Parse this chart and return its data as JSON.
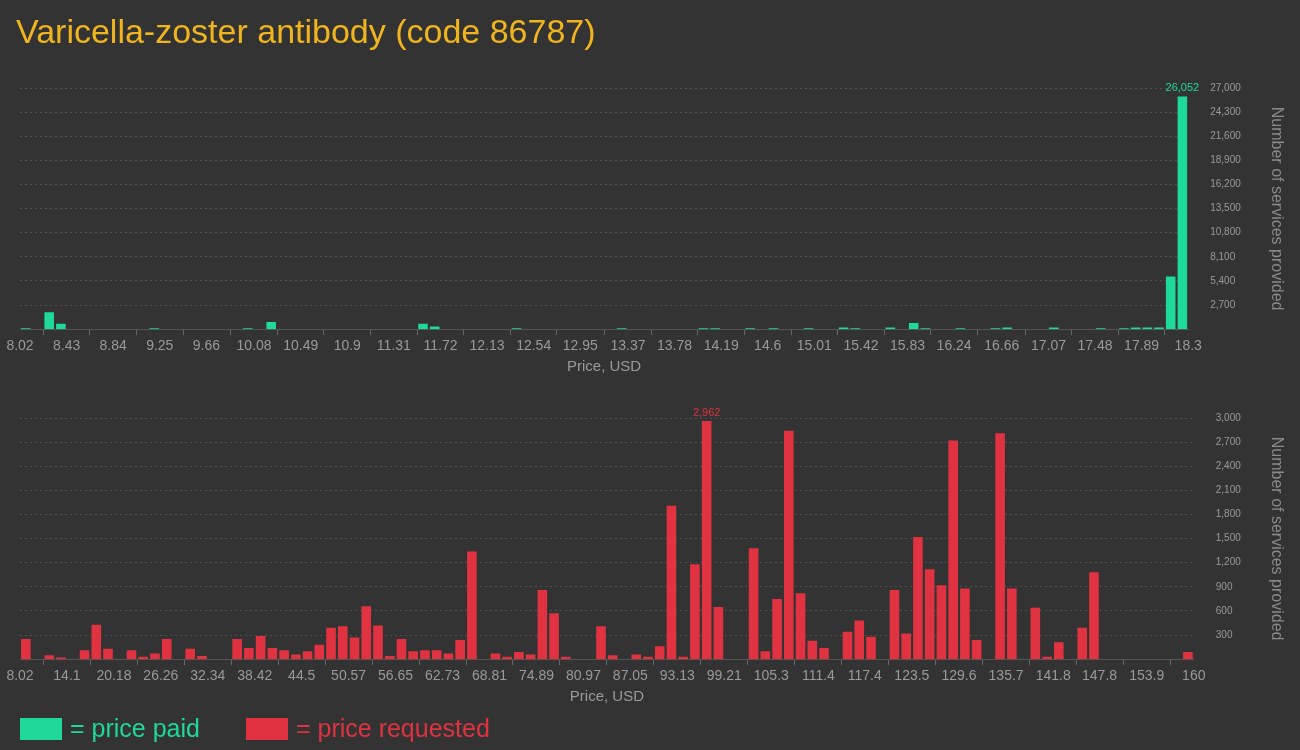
{
  "chart_data": [
    {
      "type": "histogram",
      "title": "Varicella-zoster antibody (code 86787)",
      "xlabel": "Price, USD",
      "ylabel": "Number of services provided",
      "legend": "bottom",
      "grid": "y",
      "bins": [
        8.02,
        8.1228,
        8.2256,
        8.3284,
        8.4312,
        8.534,
        8.6368,
        8.7396,
        8.8424,
        8.9452,
        9.048,
        9.1508,
        9.2536,
        9.3564,
        9.4592,
        9.562,
        9.6648,
        9.7676,
        9.8704,
        9.9732,
        10.076,
        10.1788,
        10.2816,
        10.3844,
        10.4872,
        10.59,
        10.6928,
        10.7956,
        10.8984,
        11.0012,
        11.104,
        11.2068,
        11.3096,
        11.4124,
        11.5152,
        11.618,
        11.7208,
        11.8236,
        11.9264,
        12.0292,
        12.132,
        12.2348,
        12.3376,
        12.4404,
        12.5432,
        12.646,
        12.7488,
        12.8516,
        12.9544,
        13.0572,
        13.16,
        13.2628,
        13.3656,
        13.4684,
        13.5712,
        13.674,
        13.7768,
        13.8796,
        13.9824,
        14.0852,
        14.188,
        14.2908,
        14.3936,
        14.4964,
        14.5992,
        14.702,
        14.8048,
        14.9076,
        15.0104,
        15.1132,
        15.216,
        15.3188,
        15.4216,
        15.5244,
        15.6272,
        15.73,
        15.8328,
        15.9356,
        16.0384,
        16.1412,
        16.244,
        16.3468,
        16.4496,
        16.5524,
        16.6552,
        16.758,
        16.8608,
        16.9636,
        17.0664,
        17.1692,
        17.272,
        17.3748,
        17.4776,
        17.5804,
        17.6832,
        17.786,
        17.8888,
        17.9916,
        18.0944,
        18.1972,
        18.3
      ],
      "series": [
        {
          "name": "= price paid",
          "color": "#1fd99a",
          "values": [
            100,
            0,
            1900,
            600,
            0,
            0,
            0,
            0,
            0,
            0,
            0,
            100,
            0,
            0,
            0,
            0,
            0,
            0,
            0,
            100,
            0,
            800,
            0,
            0,
            0,
            0,
            0,
            0,
            0,
            0,
            0,
            0,
            0,
            0,
            600,
            300,
            0,
            0,
            0,
            0,
            0,
            0,
            100,
            0,
            0,
            0,
            0,
            0,
            0,
            0,
            0,
            100,
            0,
            0,
            0,
            0,
            0,
            0,
            100,
            100,
            0,
            0,
            100,
            0,
            100,
            0,
            0,
            100,
            0,
            0,
            200,
            100,
            0,
            0,
            200,
            0,
            700,
            100,
            0,
            0,
            100,
            0,
            0,
            100,
            200,
            0,
            0,
            0,
            200,
            0,
            0,
            0,
            100,
            0,
            100,
            200,
            200,
            200,
            5900,
            26052
          ],
          "value_labels": [
            null,
            null,
            null,
            null,
            null,
            null,
            null,
            null,
            null,
            null,
            null,
            null,
            null,
            null,
            null,
            null,
            null,
            null,
            null,
            null,
            null,
            null,
            null,
            null,
            null,
            null,
            null,
            null,
            null,
            null,
            null,
            null,
            null,
            null,
            null,
            null,
            null,
            null,
            null,
            null,
            null,
            null,
            null,
            null,
            null,
            null,
            null,
            null,
            null,
            null,
            null,
            null,
            null,
            null,
            null,
            null,
            null,
            null,
            null,
            null,
            null,
            null,
            null,
            null,
            null,
            null,
            null,
            null,
            null,
            null,
            null,
            null,
            null,
            null,
            null,
            null,
            null,
            null,
            null,
            null,
            null,
            null,
            null,
            null,
            null,
            null,
            null,
            null,
            null,
            null,
            null,
            null,
            null,
            null,
            null,
            null,
            null,
            null,
            null,
            "26,052"
          ]
        }
      ],
      "xlim": [
        8.02,
        18.3
      ],
      "xticks": [
        8.02,
        8.43,
        8.84,
        9.25,
        9.66,
        10.08,
        10.49,
        10.9,
        11.31,
        11.72,
        12.13,
        12.54,
        12.95,
        13.37,
        13.78,
        14.19,
        14.6,
        15.01,
        15.42,
        15.83,
        16.24,
        16.66,
        17.07,
        17.48,
        17.89,
        18.3
      ],
      "ylim": [
        0,
        27000
      ],
      "yticks": [
        {
          "value": 2700,
          "label": "2,700"
        },
        {
          "value": 5400,
          "label": "5,400"
        },
        {
          "value": 8100,
          "label": "8,100"
        },
        {
          "value": 10800,
          "label": "10,800"
        },
        {
          "value": 13500,
          "label": "13,500"
        },
        {
          "value": 16200,
          "label": "16,200"
        },
        {
          "value": 18900,
          "label": "18,900"
        },
        {
          "value": 21600,
          "label": "21,600"
        },
        {
          "value": 24300,
          "label": "24,300"
        },
        {
          "value": 27000,
          "label": "27,000"
        }
      ]
    },
    {
      "type": "histogram",
      "xlabel": "Price, USD",
      "ylabel": "Number of services provided",
      "legend": "bottom",
      "grid": "y",
      "bins": [
        8.02,
        9.5398,
        11.0596,
        12.5794,
        14.0992,
        15.619,
        17.1388,
        18.6586,
        20.1784,
        21.6982,
        23.218,
        24.7378,
        26.2576,
        27.7774,
        29.2972,
        30.817,
        32.3368,
        33.8566,
        35.3764,
        36.8962,
        38.416,
        39.9358,
        41.4556,
        42.9754,
        44.4952,
        46.015,
        47.5348,
        49.0546,
        50.5744,
        52.0942,
        53.614,
        55.1338,
        56.6536,
        58.1734,
        59.6932,
        61.213,
        62.7328,
        64.2526,
        65.7724,
        67.2922,
        68.812,
        70.3318,
        71.8516,
        73.3714,
        74.8912,
        76.411,
        77.9308,
        79.4506,
        80.9704,
        82.4902,
        84.01,
        85.5298,
        87.0496,
        88.5694,
        90.0892,
        91.609,
        93.1288,
        94.6486,
        96.1684,
        97.6882,
        99.208,
        100.7278,
        102.2476,
        103.7674,
        105.2872,
        106.807,
        108.3268,
        109.8466,
        111.3664,
        112.8862,
        114.406,
        115.9258,
        117.4456,
        118.9654,
        120.4852,
        122.005,
        123.5248,
        125.0446,
        126.5644,
        128.0842,
        129.604,
        131.1238,
        132.6436,
        134.1634,
        135.6832,
        137.203,
        138.7228,
        140.2426,
        141.7624,
        143.2822,
        144.802,
        146.3218,
        147.8416,
        149.3614,
        150.8812,
        152.401,
        153.9208,
        155.4406,
        156.9604,
        158.4802,
        160
      ],
      "series": [
        {
          "name": "= price requested",
          "color": "#e03241",
          "values": [
            250,
            0,
            50,
            20,
            0,
            110,
            430,
            130,
            0,
            110,
            30,
            70,
            250,
            0,
            130,
            40,
            0,
            0,
            250,
            140,
            290,
            140,
            110,
            60,
            100,
            180,
            390,
            410,
            270,
            660,
            420,
            40,
            250,
            100,
            110,
            110,
            70,
            240,
            1340,
            0,
            70,
            30,
            90,
            60,
            860,
            570,
            30,
            0,
            0,
            410,
            50,
            0,
            60,
            30,
            160,
            1910,
            30,
            1180,
            2962,
            650,
            0,
            0,
            1380,
            100,
            750,
            2840,
            820,
            230,
            140,
            0,
            340,
            480,
            280,
            0,
            860,
            320,
            1520,
            1120,
            920,
            2720,
            880,
            240,
            0,
            2810,
            880,
            0,
            640,
            30,
            210,
            0,
            390,
            1080,
            0,
            0,
            0,
            0,
            0,
            0,
            0,
            90
          ],
          "value_labels": [
            null,
            null,
            null,
            null,
            null,
            null,
            null,
            null,
            null,
            null,
            null,
            null,
            null,
            null,
            null,
            null,
            null,
            null,
            null,
            null,
            null,
            null,
            null,
            null,
            null,
            null,
            null,
            null,
            null,
            null,
            null,
            null,
            null,
            null,
            null,
            null,
            null,
            null,
            null,
            null,
            null,
            null,
            null,
            null,
            null,
            null,
            null,
            null,
            null,
            null,
            null,
            null,
            null,
            null,
            null,
            null,
            null,
            null,
            "2,962",
            null,
            null,
            null,
            null,
            null,
            null,
            null,
            null,
            null,
            null,
            null,
            null,
            null,
            null,
            null,
            null,
            null,
            null,
            null,
            null,
            null,
            null,
            null,
            null,
            null,
            null,
            null,
            null,
            null,
            null,
            null,
            null,
            null,
            null,
            null,
            null,
            null,
            null,
            null,
            null,
            null
          ]
        }
      ],
      "xlim": [
        8.02,
        160
      ],
      "xticks": [
        8.02,
        14.1,
        20.18,
        26.26,
        32.34,
        38.42,
        44.5,
        50.57,
        56.65,
        62.73,
        68.81,
        74.89,
        80.97,
        87.05,
        93.13,
        99.21,
        105.3,
        111.4,
        117.4,
        123.5,
        129.6,
        135.7,
        141.8,
        147.8,
        153.9,
        160
      ],
      "ylim": [
        0,
        3000
      ],
      "yticks": [
        {
          "value": 300,
          "label": "300"
        },
        {
          "value": 600,
          "label": "600"
        },
        {
          "value": 900,
          "label": "900"
        },
        {
          "value": 1200,
          "label": "1,200"
        },
        {
          "value": 1500,
          "label": "1,500"
        },
        {
          "value": 1800,
          "label": "1,800"
        },
        {
          "value": 2100,
          "label": "2,100"
        },
        {
          "value": 2400,
          "label": "2,400"
        },
        {
          "value": 2700,
          "label": "2,700"
        },
        {
          "value": 3000,
          "label": "3,000"
        }
      ]
    }
  ]
}
